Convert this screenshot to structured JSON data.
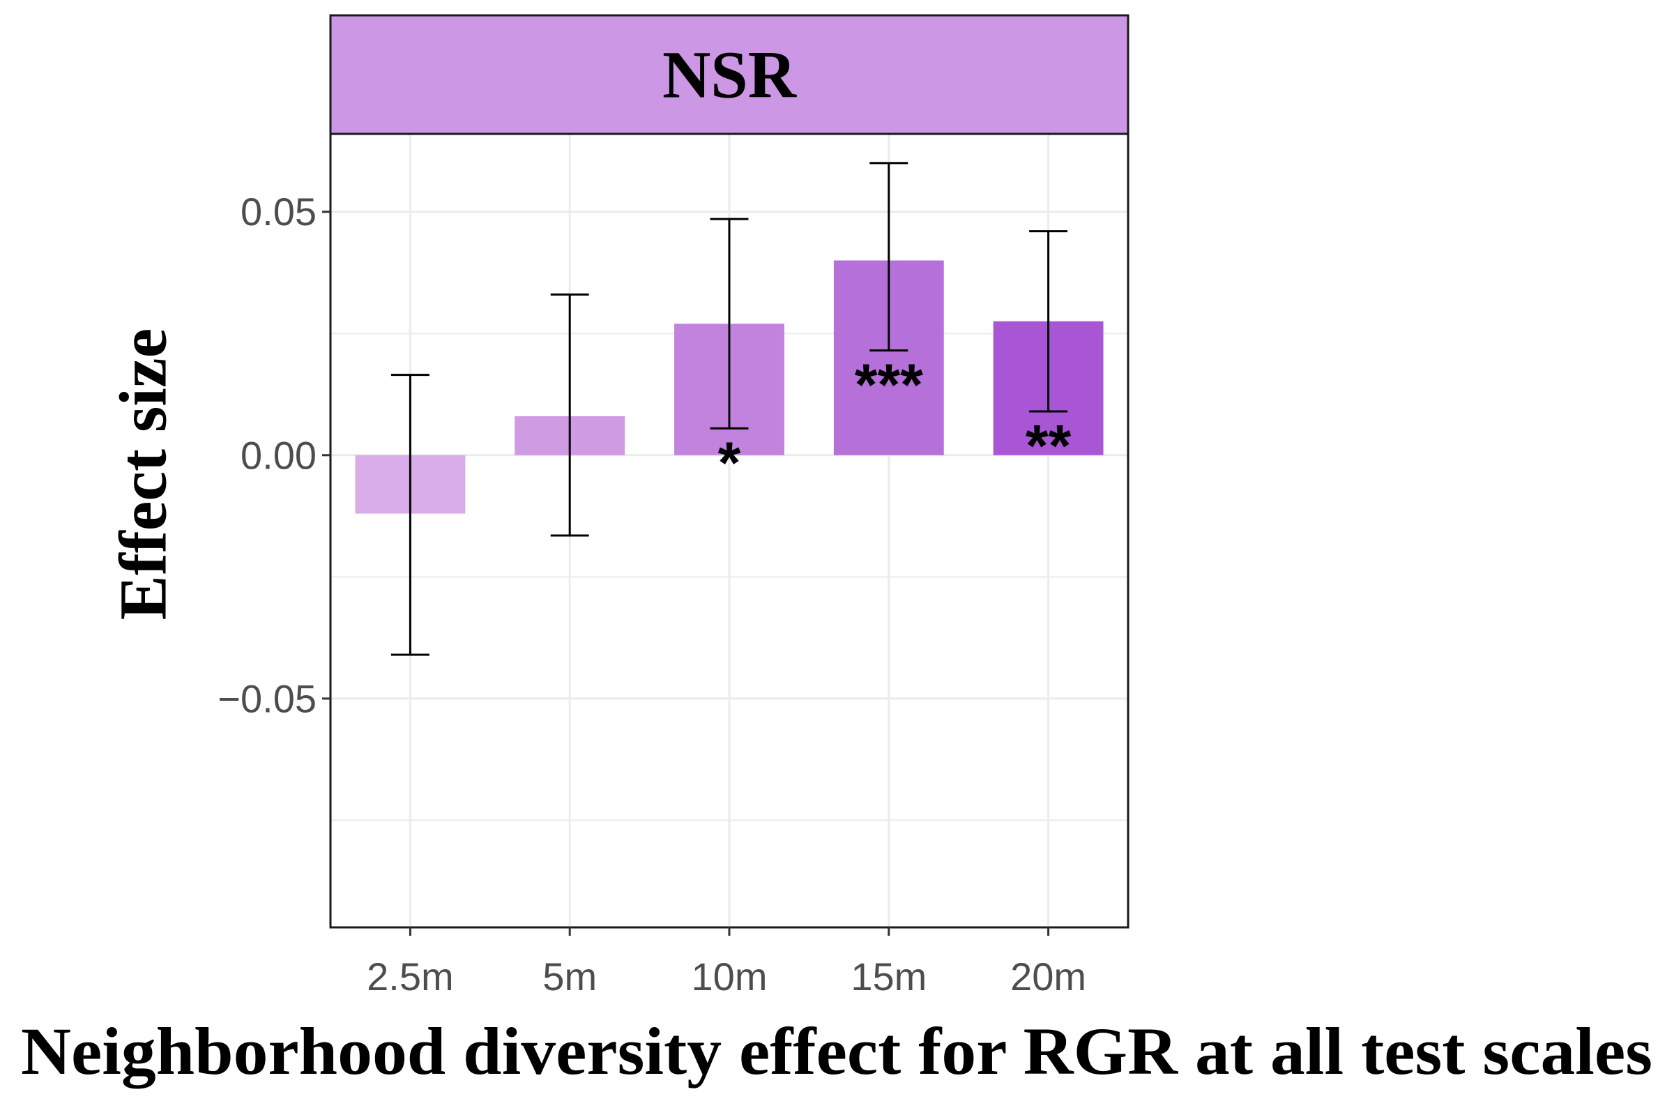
{
  "chart_data": {
    "type": "bar",
    "facet_title": "NSR",
    "xlabel": "Neighborhood diversity effect  for RGR at all test scales",
    "ylabel": "Effect size",
    "categories": [
      "2.5m",
      "5m",
      "10m",
      "15m",
      "20m"
    ],
    "values": [
      -0.012,
      0.008,
      0.027,
      0.04,
      0.0275
    ],
    "error_low": [
      -0.041,
      -0.0165,
      0.0055,
      0.0215,
      0.009
    ],
    "error_high": [
      0.0165,
      0.033,
      0.0485,
      0.06,
      0.046
    ],
    "significance": [
      "",
      "",
      "*",
      "***",
      "**"
    ],
    "bar_colors": [
      "#d8ace8",
      "#cf9be3",
      "#c283de",
      "#b571d9",
      "#a855d6"
    ],
    "ylim": [
      -0.097,
      0.066
    ],
    "yticks": [
      -0.05,
      0.0,
      0.05
    ],
    "ytick_labels": [
      "−0.05",
      "0.00",
      "0.05"
    ],
    "grid": true,
    "strip_color": "#cc98e5",
    "gridline_color": "#ebebeb",
    "errorbar_color": "#000000"
  }
}
